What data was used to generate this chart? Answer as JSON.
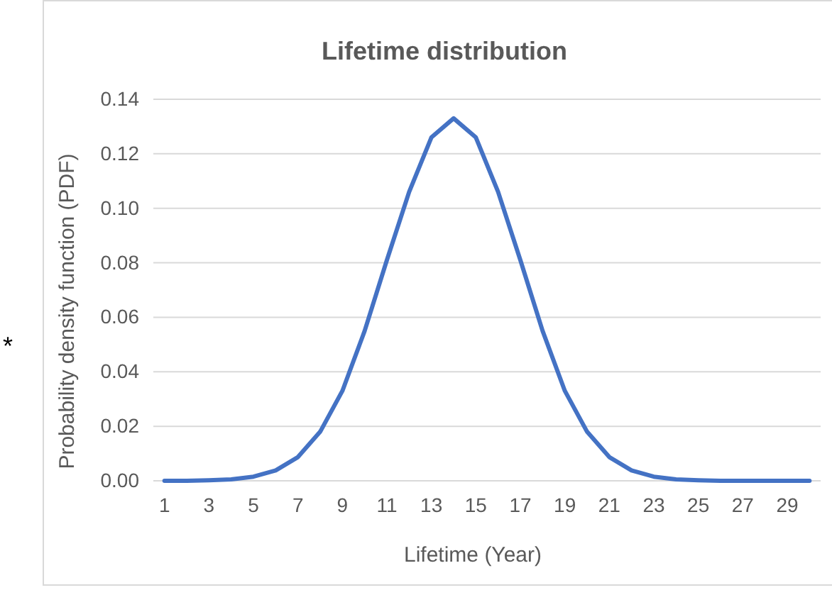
{
  "chart_data": {
    "type": "line",
    "title": "Lifetime distribution",
    "xlabel": "Lifetime (Year)",
    "ylabel": "Probability density function (PDF)",
    "x": [
      1,
      2,
      3,
      4,
      5,
      6,
      7,
      8,
      9,
      10,
      11,
      12,
      13,
      14,
      15,
      16,
      17,
      18,
      19,
      20,
      21,
      22,
      23,
      24,
      25,
      26,
      27,
      28,
      29,
      30
    ],
    "xlim": [
      0.5,
      30.5
    ],
    "xticks": [
      1,
      3,
      5,
      7,
      9,
      11,
      13,
      15,
      17,
      19,
      21,
      23,
      25,
      27,
      29
    ],
    "series": [
      {
        "color": "#4472c4",
        "values": [
          0,
          0,
          0.0002,
          0.0005,
          0.0015,
          0.0038,
          0.0087,
          0.018,
          0.033,
          0.055,
          0.081,
          0.106,
          0.126,
          0.133,
          0.126,
          0.106,
          0.081,
          0.055,
          0.033,
          0.018,
          0.0087,
          0.0038,
          0.0015,
          0.0005,
          0.0002,
          0,
          0,
          0,
          0,
          0
        ]
      }
    ],
    "ylim": [
      0,
      0.14
    ],
    "yticks": [
      {
        "value": 0,
        "label": "0.00"
      },
      {
        "value": 0.02,
        "label": "0.02"
      },
      {
        "value": 0.04,
        "label": "0.04"
      },
      {
        "value": 0.06,
        "label": "0.06"
      },
      {
        "value": 0.08,
        "label": "0.08"
      },
      {
        "value": 0.1,
        "label": "0.10"
      },
      {
        "value": 0.12,
        "label": "0.12"
      },
      {
        "value": 0.14,
        "label": "0.14"
      }
    ],
    "grid": "y",
    "marker": "none",
    "line_style": "solid",
    "annotations": [
      "*"
    ]
  }
}
